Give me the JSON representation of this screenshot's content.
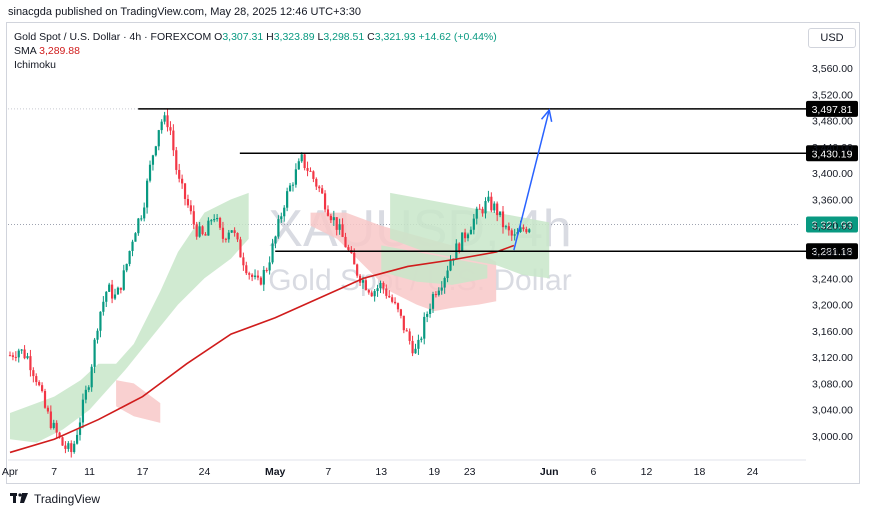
{
  "header": {
    "published": "sinacgda published on TradingView.com, May 28, 2025 12:46 UTC+3:30"
  },
  "legend": {
    "symbol": "Gold Spot / U.S. Dollar · 4h · FOREXCOM",
    "ohlc": [
      {
        "k": "O",
        "v": "3,307.31"
      },
      {
        "k": "H",
        "v": "3,323.89"
      },
      {
        "k": "L",
        "v": "3,298.51"
      },
      {
        "k": "C",
        "v": "3,321.93"
      }
    ],
    "change": "+14.62 (+0.44%)",
    "sma_label": "SMA",
    "sma_value": "3,289.88",
    "ichimoku_label": "Ichimoku"
  },
  "currency": "USD",
  "watermark": {
    "line1": "XAUUSD, 4h",
    "line2": "Gold Spot / U.S. Dollar"
  },
  "footer": {
    "brand": "TradingView",
    "logo": "tradingview-logo-icon"
  },
  "colors": {
    "up": "#089981",
    "down": "#f23645",
    "sma": "#d01c1c",
    "cloud_green": "#c8e6c9",
    "cloud_red": "#f8c8c8",
    "arrow": "#2962ff",
    "current_price_bg": "#089981"
  },
  "chart_data": {
    "type": "candlestick",
    "ylabel": "USD",
    "ylim": [
      2960,
      3600
    ],
    "y_ticks": [
      "3,560.00",
      "3,520.00",
      "3,480.00",
      "3,440.00",
      "3,400.00",
      "3,360.00",
      "3,320.00",
      "3,280.00",
      "3,240.00",
      "3,200.00",
      "3,160.00",
      "3,120.00",
      "3,080.00",
      "3,040.00",
      "3,000.00"
    ],
    "y_tick_values": [
      3560,
      3520,
      3480,
      3440,
      3400,
      3360,
      3320,
      3280,
      3240,
      3200,
      3160,
      3120,
      3080,
      3040,
      3000
    ],
    "x_ticks": [
      "Apr",
      "7",
      "11",
      "17",
      "24",
      "May",
      "7",
      "13",
      "19",
      "23",
      "Jun",
      "6",
      "12",
      "18",
      "24"
    ],
    "x_tick_bold": [
      false,
      false,
      false,
      false,
      false,
      true,
      false,
      false,
      false,
      false,
      true,
      false,
      false,
      false,
      false
    ],
    "x_tick_day_index": [
      0,
      5,
      9,
      15,
      22,
      30,
      36,
      42,
      48,
      52,
      61,
      66,
      72,
      78,
      84
    ],
    "x_range_days": [
      0,
      89
    ],
    "price_path": [
      [
        0,
        3123
      ],
      [
        1,
        3132
      ],
      [
        2,
        3120
      ],
      [
        3,
        3088
      ],
      [
        4,
        3040
      ],
      [
        5,
        3010
      ],
      [
        6,
        2985
      ],
      [
        7,
        2975
      ],
      [
        8,
        3030
      ],
      [
        9,
        3090
      ],
      [
        10,
        3180
      ],
      [
        11,
        3225
      ],
      [
        12,
        3210
      ],
      [
        13,
        3250
      ],
      [
        14,
        3310
      ],
      [
        15,
        3345
      ],
      [
        16,
        3420
      ],
      [
        17,
        3480
      ],
      [
        18,
        3478
      ],
      [
        19,
        3390
      ],
      [
        20,
        3355
      ],
      [
        21,
        3315
      ],
      [
        22,
        3300
      ],
      [
        23,
        3340
      ],
      [
        24,
        3300
      ],
      [
        25,
        3320
      ],
      [
        26,
        3280
      ],
      [
        27,
        3250
      ],
      [
        28,
        3230
      ],
      [
        29,
        3255
      ],
      [
        30,
        3300
      ],
      [
        31,
        3355
      ],
      [
        32,
        3390
      ],
      [
        33,
        3420
      ],
      [
        34,
        3400
      ],
      [
        35,
        3375
      ],
      [
        36,
        3345
      ],
      [
        37,
        3320
      ],
      [
        38,
        3290
      ],
      [
        39,
        3255
      ],
      [
        40,
        3235
      ],
      [
        41,
        3220
      ],
      [
        42,
        3230
      ],
      [
        43,
        3210
      ],
      [
        44,
        3185
      ],
      [
        45,
        3150
      ],
      [
        46,
        3125
      ],
      [
        47,
        3180
      ],
      [
        48,
        3220
      ],
      [
        49,
        3240
      ],
      [
        50,
        3275
      ],
      [
        51,
        3295
      ],
      [
        52,
        3320
      ],
      [
        53,
        3340
      ],
      [
        54,
        3355
      ],
      [
        55,
        3345
      ],
      [
        56,
        3315
      ],
      [
        57,
        3300
      ],
      [
        58,
        3315
      ],
      [
        59,
        3322
      ]
    ],
    "sma": [
      [
        0,
        2975
      ],
      [
        5,
        2995
      ],
      [
        10,
        3025
      ],
      [
        15,
        3060
      ],
      [
        20,
        3110
      ],
      [
        25,
        3155
      ],
      [
        30,
        3180
      ],
      [
        35,
        3210
      ],
      [
        40,
        3240
      ],
      [
        45,
        3258
      ],
      [
        50,
        3268
      ],
      [
        55,
        3280
      ],
      [
        57,
        3289.88
      ]
    ],
    "horizontal_levels": [
      {
        "value": 3497.81,
        "label": "3,497.81",
        "from_day": 14.5
      },
      {
        "value": 3430.19,
        "label": "3,430.19",
        "from_day": 26
      },
      {
        "value": 3281.18,
        "label": "3,281.18",
        "from_day": 30
      }
    ],
    "current_price": {
      "value": 3321.93,
      "label": "3,321.93"
    },
    "projection_arrow": {
      "from": [
        57,
        3283
      ],
      "to": [
        61,
        3496
      ]
    }
  }
}
